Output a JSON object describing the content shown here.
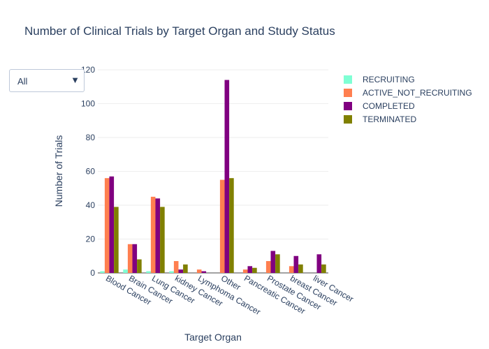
{
  "chart_data": {
    "type": "bar",
    "title": "Number of Clinical Trials by Target Organ and Study Status",
    "xlabel": "Target Organ",
    "ylabel": "Number of Trials",
    "ylim": [
      0,
      120
    ],
    "yticks": [
      0,
      20,
      40,
      60,
      80,
      100,
      120
    ],
    "grid": true,
    "legend_position": "top-right",
    "categories": [
      "Blood Cancer",
      "Brain Cancer",
      "Lung Cancer",
      "kidney Cancer",
      "Lymphoma Cancer",
      "Other",
      "Pancreatic Cancer",
      "Prostate Cancer",
      "breast Cancer",
      "liver Cancer"
    ],
    "series": [
      {
        "name": "RECRUITING",
        "color": "#7fffd4",
        "values": [
          1,
          2,
          1,
          1,
          0,
          0,
          0,
          0,
          0,
          0
        ]
      },
      {
        "name": "ACTIVE_NOT_RECRUITING",
        "color": "#ff7f50",
        "values": [
          56,
          17,
          45,
          7,
          2,
          55,
          2,
          7,
          4,
          0
        ]
      },
      {
        "name": "COMPLETED",
        "color": "#800080",
        "values": [
          57,
          17,
          44,
          2,
          1,
          114,
          4,
          13,
          10,
          11
        ]
      },
      {
        "name": "TERMINATED",
        "color": "#808000",
        "values": [
          39,
          8,
          39,
          5,
          0,
          56,
          3,
          11,
          5,
          5
        ]
      }
    ]
  },
  "dropdown": {
    "selected": "All",
    "arrow_icon": "triangle-down-icon"
  }
}
